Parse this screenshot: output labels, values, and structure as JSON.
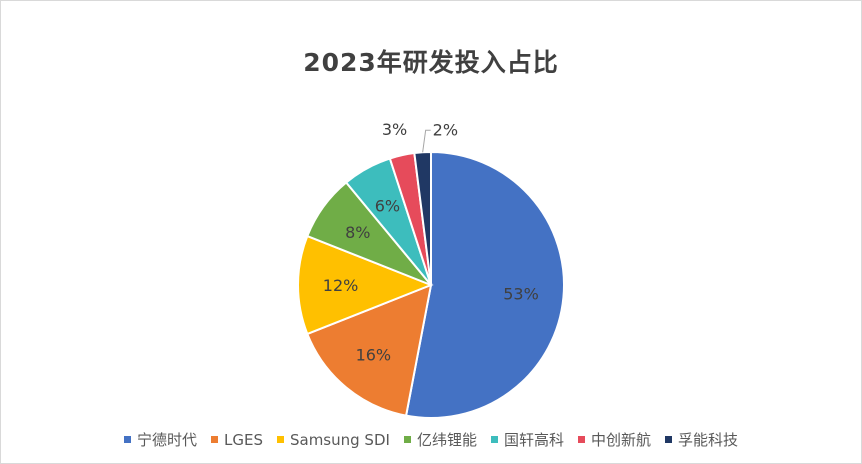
{
  "chart_data": {
    "type": "pie",
    "title": "2023年研发投入占比",
    "categories": [
      "宁德时代",
      "LGES",
      "Samsung SDI",
      "亿纬锂能",
      "国轩高科",
      "中创新航",
      "孚能科技"
    ],
    "values": [
      53,
      16,
      12,
      8,
      6,
      3,
      2
    ],
    "labels": [
      "53%",
      "16%",
      "12%",
      "8%",
      "6%",
      "3%",
      "2%"
    ],
    "colors": [
      "#4472C4",
      "#ED7D31",
      "#FFC000",
      "#70AD47",
      "#3DBDBD",
      "#E64B5B",
      "#203864"
    ],
    "legend_position": "bottom"
  }
}
